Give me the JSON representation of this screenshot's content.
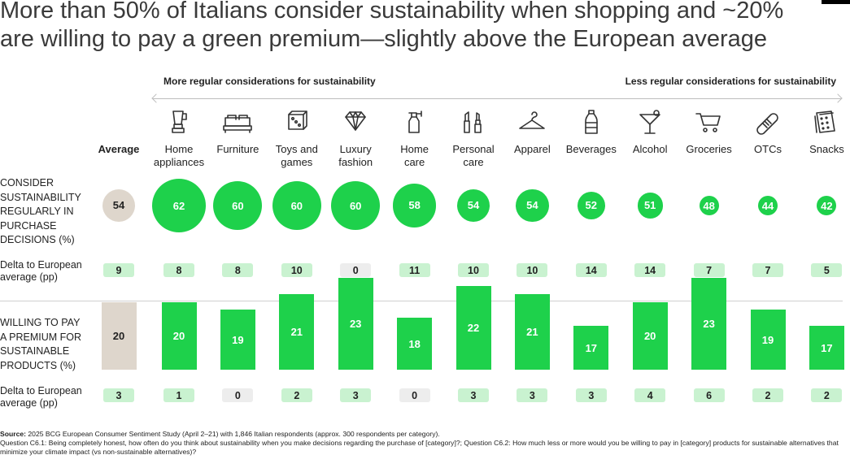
{
  "title": {
    "line1": "More than 50% of Italians consider sustainability when shopping and ~20%",
    "line2": "are willing to pay a green premium—slightly above the European average"
  },
  "headers": {
    "left": "More regular considerations for sustainability",
    "right": "Less regular considerations for sustainability"
  },
  "average_label": "Average",
  "row_labels": {
    "consider": [
      "CONSIDER",
      "SUSTAINABILITY",
      "REGULARLY IN",
      "PURCHASE",
      "DECISIONS (%)"
    ],
    "delta1": [
      "Delta to European",
      "average (pp)"
    ],
    "willing": [
      "WILLING TO PAY",
      "A PREMIUM FOR",
      "SUSTAINABLE",
      "PRODUCTS (%)"
    ],
    "delta2": [
      "Delta to European",
      "average (pp)"
    ]
  },
  "colors": {
    "green": "#1ed14b",
    "average_fill": "#ded6cc",
    "pill_positive": "#c9f2d0",
    "pill_zero": "#ededed"
  },
  "chart_data": {
    "type": "bar",
    "categories": [
      {
        "label": [
          "Home",
          "appliances"
        ],
        "icon": "blender-icon"
      },
      {
        "label": [
          "Furniture"
        ],
        "icon": "bed-icon"
      },
      {
        "label": [
          "Toys and",
          "games"
        ],
        "icon": "dice-icon"
      },
      {
        "label": [
          "Luxury",
          "fashion"
        ],
        "icon": "diamond-icon"
      },
      {
        "label": [
          "Home",
          "care"
        ],
        "icon": "spray-bottle-icon"
      },
      {
        "label": [
          "Personal",
          "care"
        ],
        "icon": "lipstick-icon"
      },
      {
        "label": [
          "Apparel"
        ],
        "icon": "hanger-icon"
      },
      {
        "label": [
          "Beverages"
        ],
        "icon": "bottle-icon"
      },
      {
        "label": [
          "Alcohol"
        ],
        "icon": "cocktail-glass-icon"
      },
      {
        "label": [
          "Groceries"
        ],
        "icon": "shopping-cart-icon"
      },
      {
        "label": [
          "OTCs"
        ],
        "icon": "bandage-icon"
      },
      {
        "label": [
          "Snacks"
        ],
        "icon": "crackers-icon"
      }
    ],
    "average": {
      "consider": 54,
      "delta_consider": 9,
      "willing": 20,
      "delta_willing": 3
    },
    "consider": [
      62,
      60,
      60,
      60,
      58,
      54,
      54,
      52,
      51,
      48,
      44,
      42
    ],
    "delta_consider": [
      8,
      8,
      10,
      0,
      11,
      10,
      10,
      14,
      14,
      7,
      7,
      5
    ],
    "willing": [
      20,
      19,
      21,
      23,
      18,
      22,
      21,
      17,
      20,
      23,
      19,
      17
    ],
    "delta_willing": [
      1,
      0,
      2,
      3,
      0,
      3,
      3,
      3,
      4,
      6,
      2,
      2
    ]
  },
  "source": {
    "label": "Source:",
    "text": "2025 BCG European Consumer Sentiment Study (April 2–21) with 1,846 Italian respondents (approx. 300 respondents per category).",
    "questions": "Question C6.1: Being completely honest, how often do you think about sustainability when you make decisions regarding the purchase of [category]?; Question C6.2: How much less or more would you be willing to pay in [category] products for sustainable alternatives that minimize your climate impact (vs non-sustainable alternatives)?"
  }
}
